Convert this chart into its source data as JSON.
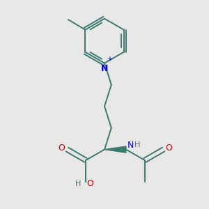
{
  "bg_color": "#e8e8e8",
  "bond_color": "#3d7a6e",
  "N_color": "#0000cc",
  "O_color": "#cc0000",
  "H_color": "#666666",
  "lw": 1.4,
  "fig_size": [
    3.0,
    3.0
  ],
  "dpi": 100,
  "xlim": [
    0.1,
    0.9
  ],
  "ylim": [
    0.05,
    0.97
  ]
}
